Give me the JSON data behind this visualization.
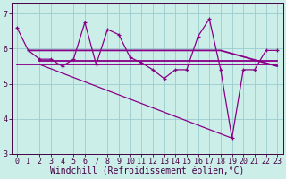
{
  "background_color": "#cceee8",
  "line_color": "#880088",
  "grid_color": "#99cccc",
  "xlabel": "Windchill (Refroidissement éolien,°C)",
  "xlabel_fontsize": 7,
  "tick_fontsize": 6,
  "xlim": [
    -0.5,
    23.5
  ],
  "ylim": [
    3.0,
    7.3
  ],
  "yticks": [
    3,
    4,
    5,
    6,
    7
  ],
  "xticks": [
    0,
    1,
    2,
    3,
    4,
    5,
    6,
    7,
    8,
    9,
    10,
    11,
    12,
    13,
    14,
    15,
    16,
    17,
    18,
    19,
    20,
    21,
    22,
    23
  ],
  "series1_x": [
    0,
    1,
    2,
    3,
    4,
    5,
    6,
    7,
    8,
    9,
    10,
    11,
    12,
    13,
    14,
    15,
    16,
    17,
    18,
    19,
    20,
    21,
    22,
    23
  ],
  "series1_y": [
    6.6,
    5.95,
    5.7,
    5.7,
    5.5,
    5.7,
    6.75,
    5.55,
    6.55,
    6.4,
    5.75,
    5.6,
    5.4,
    5.15,
    5.4,
    5.4,
    6.35,
    6.85,
    5.4,
    3.45,
    5.4,
    5.4,
    5.95,
    5.95
  ],
  "series2_x": [
    0,
    19,
    23
  ],
  "series2_y": [
    5.55,
    5.55,
    5.55
  ],
  "series3_x": [
    1,
    18,
    23
  ],
  "series3_y": [
    5.95,
    5.95,
    5.5
  ],
  "series4_x": [
    2,
    19
  ],
  "series4_y": [
    5.55,
    3.45
  ],
  "series5_x": [
    2,
    7,
    18,
    23
  ],
  "series5_y": [
    5.65,
    5.65,
    5.65,
    5.65
  ]
}
